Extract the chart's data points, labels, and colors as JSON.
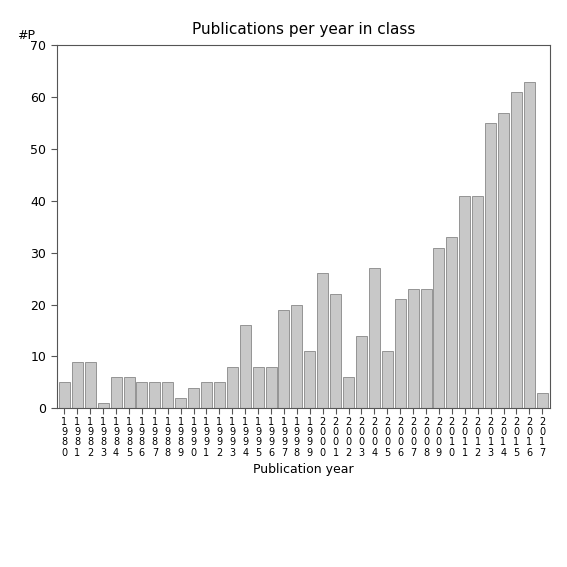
{
  "years": [
    1980,
    1981,
    1982,
    1983,
    1984,
    1985,
    1986,
    1987,
    1988,
    1989,
    1990,
    1991,
    1992,
    1993,
    1994,
    1995,
    1996,
    1997,
    1998,
    1999,
    2000,
    2001,
    2002,
    2003,
    2004,
    2005,
    2006,
    2007,
    2008,
    2009,
    2010,
    2011,
    2012,
    2013,
    2014,
    2015,
    2016,
    2017
  ],
  "values": [
    5,
    9,
    9,
    1,
    6,
    6,
    5,
    5,
    5,
    2,
    4,
    5,
    5,
    8,
    16,
    8,
    8,
    19,
    20,
    11,
    26,
    22,
    6,
    14,
    27,
    11,
    21,
    23,
    23,
    31,
    33,
    41,
    41,
    55,
    57,
    61,
    63,
    3
  ],
  "title": "Publications per year in class",
  "xlabel": "Publication year",
  "ylabel": "#P",
  "ylim": [
    0,
    70
  ],
  "yticks": [
    0,
    10,
    20,
    30,
    40,
    50,
    60,
    70
  ],
  "bar_color": "#c8c8c8",
  "bar_edgecolor": "#888888",
  "background_color": "#ffffff",
  "title_fontsize": 11,
  "label_fontsize": 9,
  "tick_fontsize": 9,
  "xtick_fontsize": 7
}
